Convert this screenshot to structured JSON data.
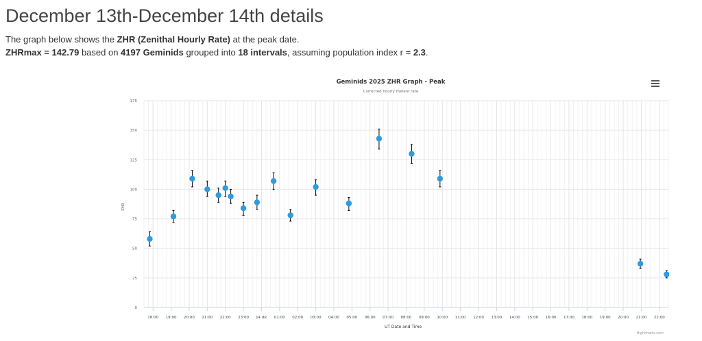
{
  "page": {
    "title": "December 13th-December 14th details",
    "line1_prefix": "The graph below shows the ",
    "line1_bold": "ZHR (Zenithal Hourly Rate)",
    "line1_suffix": " at the peak date.",
    "zhrmax_label": "ZHRmax = 142.79",
    "line2_a": " based on ",
    "meteor_count": "4197 Geminids",
    "line2_b": " grouped into ",
    "interval_count": "18 intervals",
    "line2_c": ", assuming population index r = ",
    "population_index": "2.3",
    "line2_end": "."
  },
  "chart_data": {
    "type": "scatter",
    "title": "Geminids 2025 ZHR Graph - Peak",
    "subtitle": "Corrected hourly meteor rate",
    "xlabel": "UT Date and Time",
    "ylabel": "ZHR",
    "credits": "Highcharts.com",
    "ylim": [
      0,
      175
    ],
    "y_ticks": [
      0,
      25,
      50,
      75,
      100,
      125,
      150,
      175
    ],
    "x_ticks": [
      "18:00",
      "19:00",
      "20:00",
      "21:00",
      "22:00",
      "23:00",
      "14 dic",
      "01:00",
      "02:00",
      "03:00",
      "04:00",
      "05:00",
      "06:00",
      "07:00",
      "08:00",
      "09:00",
      "10:00",
      "11:00",
      "12:00",
      "13:00",
      "14:00",
      "15:00",
      "16:00",
      "17:00",
      "18:00",
      "19:00",
      "20:00",
      "21:00",
      "22:00"
    ],
    "x_tick_hours": [
      18,
      19,
      20,
      21,
      22,
      23,
      24,
      25,
      26,
      27,
      28,
      29,
      30,
      31,
      32,
      33,
      34,
      35,
      36,
      37,
      38,
      39,
      40,
      41,
      42,
      43,
      44,
      45,
      46
    ],
    "x_range_hours": [
      17.5,
      46.5
    ],
    "grid": true,
    "legend": "none",
    "color": "#2f9be0",
    "error_bar_color": "#000000",
    "series": [
      {
        "points": [
          {
            "x": 17.82,
            "y": 58,
            "low": 52,
            "high": 64
          },
          {
            "x": 19.13,
            "y": 77,
            "low": 72,
            "high": 82
          },
          {
            "x": 20.17,
            "y": 109,
            "low": 102,
            "high": 116
          },
          {
            "x": 21.0,
            "y": 100,
            "low": 94,
            "high": 107
          },
          {
            "x": 21.62,
            "y": 95,
            "low": 89,
            "high": 101
          },
          {
            "x": 22.0,
            "y": 101,
            "low": 94,
            "high": 107
          },
          {
            "x": 22.3,
            "y": 94,
            "low": 88,
            "high": 100
          },
          {
            "x": 23.0,
            "y": 84,
            "low": 78,
            "high": 89
          },
          {
            "x": 23.75,
            "y": 89,
            "low": 83,
            "high": 95
          },
          {
            "x": 24.67,
            "y": 107,
            "low": 100,
            "high": 114
          },
          {
            "x": 25.6,
            "y": 78,
            "low": 73,
            "high": 83
          },
          {
            "x": 27.0,
            "y": 102,
            "low": 95,
            "high": 108
          },
          {
            "x": 28.83,
            "y": 88,
            "low": 82,
            "high": 93
          },
          {
            "x": 30.5,
            "y": 142.79,
            "low": 134,
            "high": 151
          },
          {
            "x": 32.3,
            "y": 130,
            "low": 122,
            "high": 138
          },
          {
            "x": 33.87,
            "y": 109,
            "low": 102,
            "high": 116
          },
          {
            "x": 44.95,
            "y": 37,
            "low": 33,
            "high": 41
          },
          {
            "x": 46.4,
            "y": 28,
            "low": 25,
            "high": 31
          }
        ]
      }
    ]
  }
}
